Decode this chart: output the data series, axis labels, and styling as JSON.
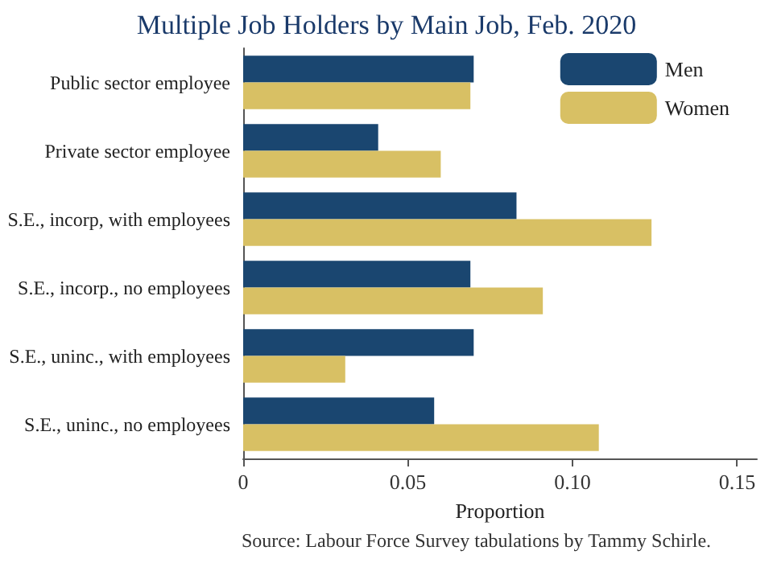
{
  "chart_data": {
    "type": "bar",
    "orientation": "horizontal",
    "title": "Multiple Job Holders by Main Job, Feb. 2020",
    "xlabel": "Proportion",
    "categories": [
      "Public sector employee",
      "Private sector employee",
      "S.E., incorp, with employees",
      "S.E., incorp., no employees",
      "S.E., uninc., with employees",
      "S.E., uninc., no employees"
    ],
    "series": [
      {
        "name": "Men",
        "color": "#1a4670",
        "values": [
          0.07,
          0.041,
          0.083,
          0.069,
          0.07,
          0.058
        ]
      },
      {
        "name": "Women",
        "color": "#d8c064",
        "values": [
          0.069,
          0.06,
          0.124,
          0.091,
          0.031,
          0.108
        ]
      }
    ],
    "xlim": [
      0,
      0.156
    ],
    "xticks": [
      0,
      0.05,
      {
        "value": 0.1,
        "label": "0.10"
      },
      0.15
    ],
    "grid": false,
    "legend": "top right",
    "annotations": [
      "Source: Labour Force Survey tabulations by Tammy Schirle."
    ]
  }
}
